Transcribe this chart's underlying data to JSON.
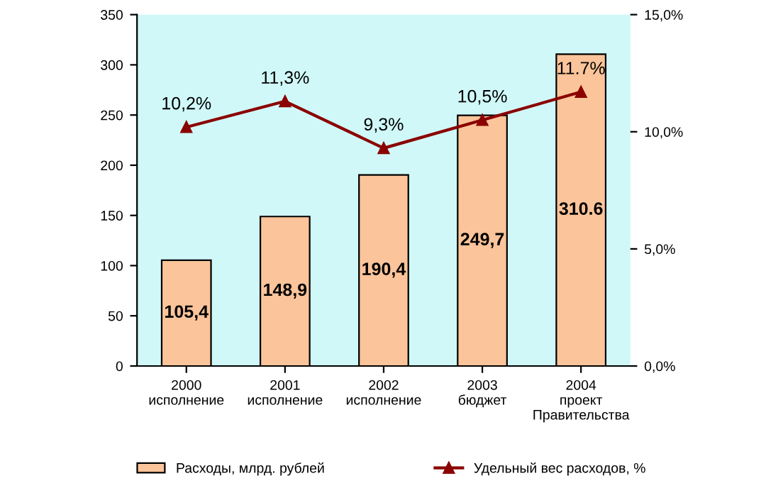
{
  "chart_data": {
    "type": "bar",
    "categories": [
      "2000\nисполнение",
      "2001\nисполнение",
      "2002\nисполнение",
      "2003\nбюджет",
      "2004\nпроект\nПравительства"
    ],
    "series": [
      {
        "name": "Расходы, млрд. рублей",
        "color": "#fbc49a",
        "values": [
          105.4,
          148.9,
          190.4,
          249.7,
          310.6
        ],
        "value_labels": [
          "105,4",
          "148,9",
          "190,4",
          "249,7",
          "310.6"
        ]
      },
      {
        "name": "Удельный вес расходов, %",
        "type": "line",
        "axis": "y2",
        "color": "#8b0000",
        "marker": "triangle",
        "values": [
          10.2,
          11.3,
          9.3,
          10.5,
          11.7
        ],
        "value_labels": [
          "10,2%",
          "11,3%",
          "9,3%",
          "10,5%",
          "11.7%"
        ]
      }
    ],
    "ylim": [
      0,
      350
    ],
    "yticks": [
      0,
      50,
      100,
      150,
      200,
      250,
      300,
      350
    ],
    "y2lim": [
      0,
      15
    ],
    "y2ticks": [
      {
        "value": 0,
        "label": "0,0%"
      },
      {
        "value": 5,
        "label": "5,0%"
      },
      {
        "value": 10,
        "label": "10,0%"
      },
      {
        "value": 15,
        "label": "15,0%"
      }
    ],
    "grid": false,
    "legend": "bottom"
  }
}
